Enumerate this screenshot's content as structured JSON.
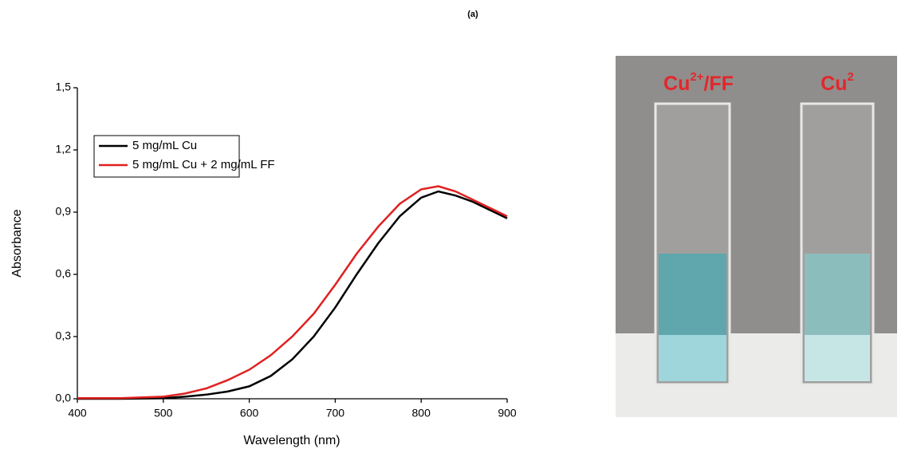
{
  "chart_data": {
    "type": "line",
    "title": "(a)",
    "x_label": "Wavelength (nm)",
    "y_label": "Absorbance",
    "x": [
      400,
      450,
      500,
      525,
      550,
      575,
      600,
      625,
      650,
      675,
      700,
      725,
      750,
      775,
      800,
      820,
      840,
      860,
      880,
      900
    ],
    "series": [
      {
        "name": "5 mg/mL Cu",
        "color": "#000000",
        "values": [
          0.0,
          0.0,
          0.003,
          0.01,
          0.02,
          0.035,
          0.06,
          0.11,
          0.19,
          0.3,
          0.44,
          0.6,
          0.75,
          0.88,
          0.97,
          1.0,
          0.98,
          0.95,
          0.91,
          0.87
        ]
      },
      {
        "name": "5 mg/mL Cu + 2 mg/mL FF",
        "color": "#e02020",
        "values": [
          0.003,
          0.003,
          0.01,
          0.025,
          0.05,
          0.09,
          0.14,
          0.21,
          0.3,
          0.41,
          0.55,
          0.7,
          0.83,
          0.94,
          1.01,
          1.025,
          1.0,
          0.96,
          0.92,
          0.88
        ]
      }
    ],
    "xlim": [
      400,
      900
    ],
    "ylim": [
      0,
      1.5
    ],
    "xticks": [
      400,
      500,
      600,
      700,
      800,
      900
    ],
    "yticks": [
      {
        "value": 0,
        "label": "0,0"
      },
      {
        "value": 0.3,
        "label": "0,3"
      },
      {
        "value": 0.6,
        "label": "0,6"
      },
      {
        "value": 0.9,
        "label": "0,9"
      },
      {
        "value": 1.2,
        "label": "1,2"
      },
      {
        "value": 1.5,
        "label": "1,5"
      }
    ],
    "legend": "upper left"
  },
  "photo_labels": [
    [
      "Cu",
      "2+",
      "/FF"
    ],
    [
      "Cu",
      "2"
    ]
  ]
}
